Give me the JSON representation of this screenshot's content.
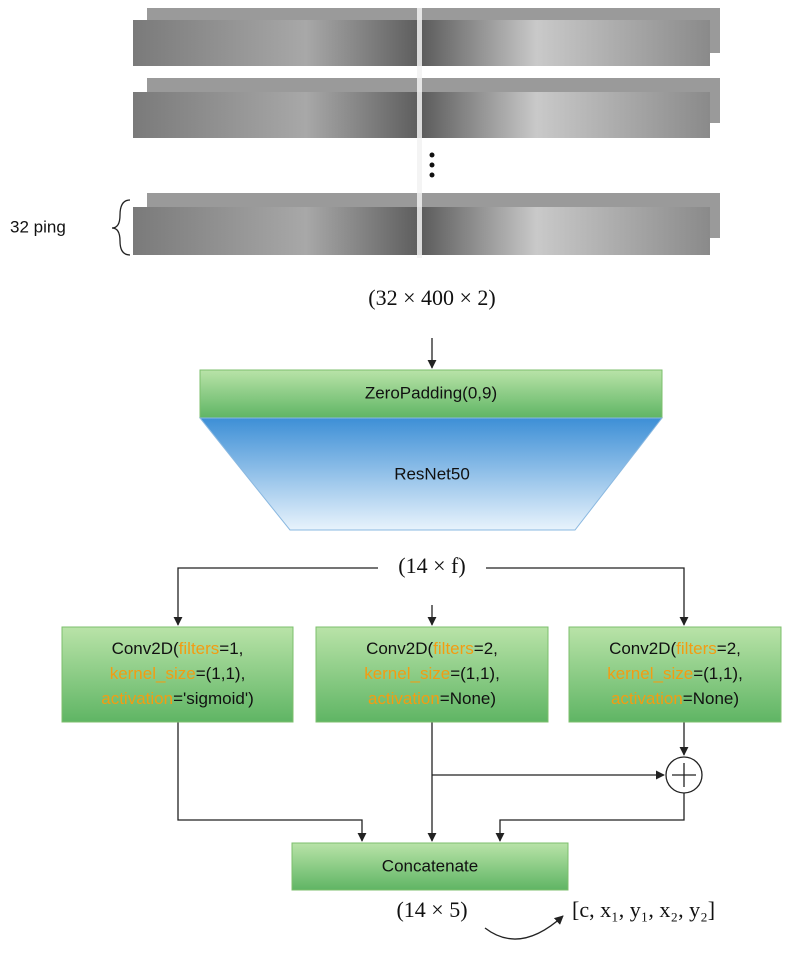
{
  "input": {
    "ping_label": "32 ping",
    "shape": "(32 × 400 × 2)"
  },
  "zero_padding": "ZeroPadding(0,9)",
  "backbone": "ResNet50",
  "feature_shape": "(14 × f)",
  "keyword_color": "#f39c12",
  "convs": [
    {
      "lines": [
        {
          "prefix": "Conv2D(",
          "keyword": "filters",
          "rest": "=1,"
        },
        {
          "keyword": "kernel_size",
          "rest": "=(1,1),"
        },
        {
          "keyword": "activation",
          "rest": "='sigmoid')"
        }
      ]
    },
    {
      "lines": [
        {
          "prefix": "Conv2D(",
          "keyword": "filters",
          "rest": "=2,"
        },
        {
          "keyword": "kernel_size",
          "rest": "=(1,1),"
        },
        {
          "keyword": "activation",
          "rest": "=None)"
        }
      ]
    },
    {
      "lines": [
        {
          "prefix": "Conv2D(",
          "keyword": "filters",
          "rest": "=2,"
        },
        {
          "keyword": "kernel_size",
          "rest": "=(1,1),"
        },
        {
          "keyword": "activation",
          "rest": "=None)"
        }
      ]
    }
  ],
  "concatenate": "Concatenate",
  "output_shape": "(14 × 5)",
  "output": "[c, x₁, y₁, x₂, y₂]"
}
